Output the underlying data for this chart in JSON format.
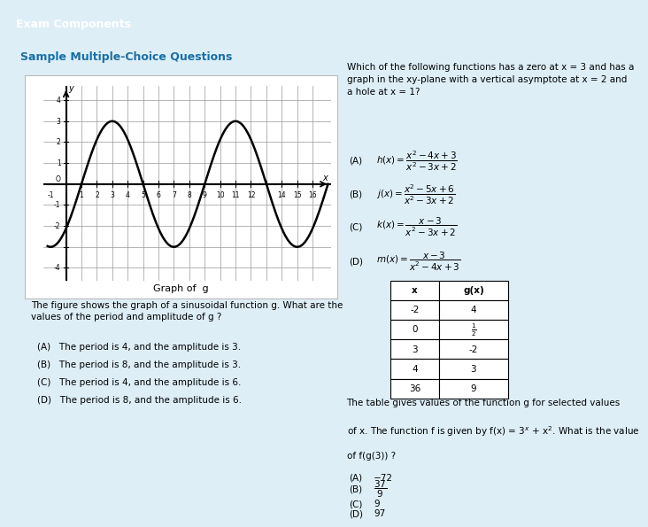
{
  "title": "Exam Components",
  "title_bg": "#2aa8d8",
  "subtitle": "Sample Multiple-Choice Questions",
  "subtitle_color": "#1a6fa3",
  "bg_color": "#ddeef7",
  "graph_bg": "#ffffff",
  "graph_caption": "Graph of  g",
  "q1_text": "The figure shows the graph of a sinusoidal function g. What are the\nvalues of the period and amplitude of g ?",
  "q1_choices": [
    "(A)   The period is 4, and the amplitude is 3.",
    "(B)   The period is 8, and the amplitude is 3.",
    "(C)   The period is 4, and the amplitude is 6.",
    "(D)   The period is 8, and the amplitude is 6."
  ],
  "q2_text": "Which of the following functions has a zero at x = 3 and has a\ngraph in the xy-plane with a vertical asymptote at x = 2 and\na hole at x = 1?",
  "table_headers": [
    "x",
    "g(x)"
  ],
  "table_rows": [
    [
      "-2",
      "4"
    ],
    [
      "0",
      "\\frac{1}{2}"
    ],
    [
      "3",
      "-2"
    ],
    [
      "4",
      "3"
    ],
    [
      "36",
      "9"
    ]
  ],
  "q3_text_1": "The table gives values of the function g for selected values",
  "q3_text_2": "of x. The function f is given by f(x) = 3",
  "q3_text_3": " + x². What is the value",
  "q3_text_4": "of f(g(3)) ?"
}
